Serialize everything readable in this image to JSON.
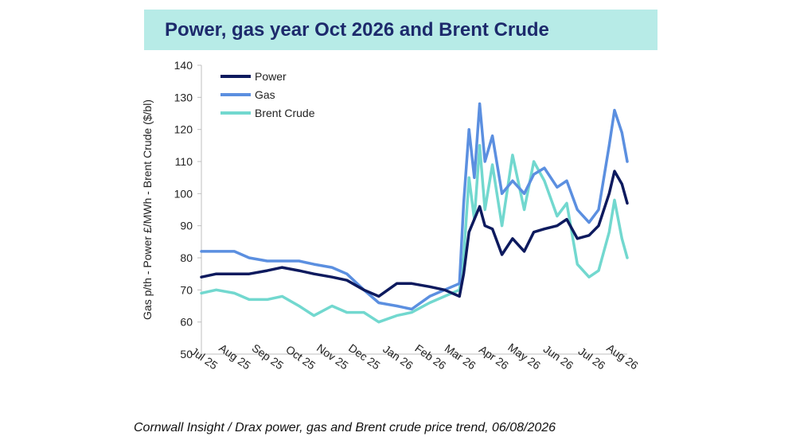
{
  "chart_data": {
    "type": "line",
    "title": "Power, gas year Oct 2026 and Brent Crude",
    "ylabel": "Gas p/th - Power £/MWh - Brent Crude ($/bl)",
    "xlabel": "",
    "ylim": [
      50,
      140
    ],
    "yticks": [
      50,
      60,
      70,
      80,
      90,
      100,
      110,
      120,
      130,
      140
    ],
    "x_tick_labels": [
      "Jul 25",
      "Aug 25",
      "Sep 25",
      "Oct 25",
      "Nov 25",
      "Dec 25",
      "Jan 26",
      "Feb 26",
      "Mar 26",
      "Apr 26",
      "May 26",
      "Jun 26",
      "Jul 26",
      "Aug 26"
    ],
    "legend_position": "top-left",
    "grid": false,
    "x": [
      "2025-07-01",
      "2025-07-15",
      "2025-08-01",
      "2025-08-15",
      "2025-09-01",
      "2025-09-15",
      "2025-10-01",
      "2025-10-15",
      "2025-11-01",
      "2025-11-15",
      "2025-12-01",
      "2025-12-15",
      "2026-01-01",
      "2026-01-15",
      "2026-02-01",
      "2026-02-15",
      "2026-03-01",
      "2026-03-05",
      "2026-03-10",
      "2026-03-15",
      "2026-03-20",
      "2026-03-25",
      "2026-04-01",
      "2026-04-10",
      "2026-04-20",
      "2026-05-01",
      "2026-05-10",
      "2026-05-20",
      "2026-06-01",
      "2026-06-10",
      "2026-06-20",
      "2026-07-01",
      "2026-07-10",
      "2026-07-20",
      "2026-07-25",
      "2026-08-01",
      "2026-08-06"
    ],
    "series": [
      {
        "name": "Power",
        "color": "#0d1a5e",
        "values": [
          74,
          75,
          75,
          75,
          76,
          77,
          76,
          75,
          74,
          73,
          70,
          68,
          72,
          72,
          71,
          70,
          68,
          75,
          88,
          92,
          96,
          90,
          89,
          81,
          86,
          82,
          88,
          89,
          90,
          92,
          86,
          87,
          90,
          100,
          107,
          103,
          97
        ]
      },
      {
        "name": "Gas",
        "color": "#5b8fe0",
        "values": [
          82,
          82,
          82,
          80,
          79,
          79,
          79,
          78,
          77,
          75,
          70,
          66,
          65,
          64,
          68,
          70,
          72,
          97,
          120,
          105,
          128,
          110,
          118,
          100,
          104,
          100,
          106,
          108,
          102,
          104,
          95,
          91,
          95,
          115,
          126,
          119,
          110
        ]
      },
      {
        "name": "Brent Crude",
        "color": "#72d8cf",
        "values": [
          69,
          70,
          69,
          67,
          67,
          68,
          65,
          62,
          65,
          63,
          63,
          60,
          62,
          63,
          66,
          68,
          70,
          80,
          105,
          92,
          115,
          95,
          109,
          90,
          112,
          95,
          110,
          104,
          93,
          97,
          78,
          74,
          76,
          88,
          98,
          86,
          80
        ]
      }
    ]
  },
  "caption": "Cornwall Insight / Drax power, gas and Brent crude price trend, 06/08/2026"
}
